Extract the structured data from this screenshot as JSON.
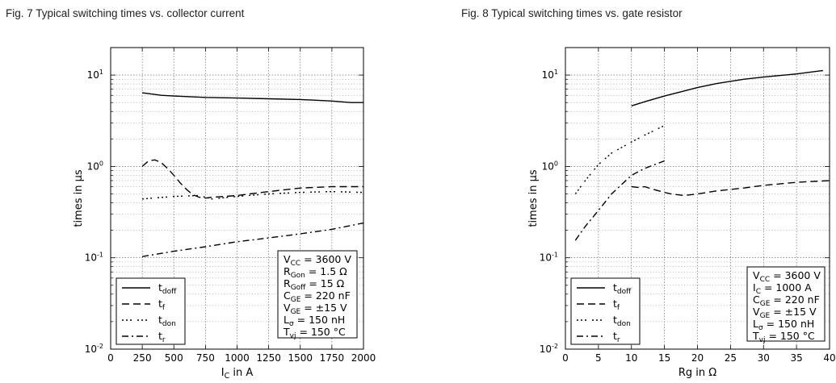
{
  "chart_data": [
    {
      "type": "line",
      "title": "Fig. 7  Typical switching times vs. collector current",
      "xlabel": "I",
      "xlabel_sub": "C",
      "xlabel_tail": " in A",
      "ylabel": "times in µs",
      "xscale": "linear",
      "yscale": "log",
      "xlim": [
        0,
        2000
      ],
      "ylim": [
        0.01,
        20
      ],
      "xticks": [
        "0",
        "250",
        "500",
        "750",
        "1000",
        "1250",
        "1500",
        "1750",
        "2000"
      ],
      "yticks": [
        {
          "exp": "-2",
          "v": 0.01
        },
        {
          "exp": "-1",
          "v": 0.1
        },
        {
          "exp": "0",
          "v": 1
        },
        {
          "exp": "1",
          "v": 10
        }
      ],
      "grid": true,
      "legend_position": "bottom-left",
      "series": [
        {
          "name": "t",
          "sub": "doff",
          "dash": "none",
          "x": [
            250,
            400,
            500,
            750,
            1000,
            1250,
            1500,
            1750,
            1900,
            2000
          ],
          "y": [
            6.4,
            6.0,
            5.9,
            5.7,
            5.6,
            5.5,
            5.4,
            5.2,
            5.0,
            5.0
          ]
        },
        {
          "name": "t",
          "sub": "f",
          "dash": "9 5",
          "x": [
            250,
            300,
            350,
            400,
            450,
            500,
            550,
            600,
            650,
            700,
            750,
            800,
            900,
            1000,
            1100,
            1250,
            1500,
            1750,
            2000
          ],
          "y": [
            1.0,
            1.15,
            1.18,
            1.1,
            0.95,
            0.8,
            0.66,
            0.56,
            0.49,
            0.46,
            0.45,
            0.46,
            0.47,
            0.48,
            0.5,
            0.53,
            0.58,
            0.6,
            0.6
          ]
        },
        {
          "name": "t",
          "sub": "don",
          "dash": "2 3 2 3 2 7",
          "x": [
            250,
            500,
            700,
            800,
            1000,
            1250,
            1500,
            1750,
            2000
          ],
          "y": [
            0.44,
            0.47,
            0.48,
            0.44,
            0.47,
            0.5,
            0.52,
            0.53,
            0.52
          ]
        },
        {
          "name": "t",
          "sub": "r",
          "dash": "8 4 2 4",
          "x": [
            250,
            500,
            750,
            1000,
            1250,
            1500,
            1750,
            2000
          ],
          "y": [
            0.103,
            0.118,
            0.132,
            0.15,
            0.165,
            0.183,
            0.205,
            0.24
          ]
        }
      ],
      "conditions": [
        {
          "main": "V",
          "sub": "CC",
          "rest": " = 3600 V"
        },
        {
          "main": "R",
          "sub": "Gon",
          "rest": " = 1.5 Ω"
        },
        {
          "main": "R",
          "sub": "Goff",
          "rest": " = 15 Ω"
        },
        {
          "main": "C",
          "sub": "GE",
          "rest": " = 220 nF"
        },
        {
          "main": "V",
          "sub": "GE",
          "rest": " = ±15 V"
        },
        {
          "main": "L",
          "sub": "σ",
          "rest": " = 150 nH"
        },
        {
          "main": "T",
          "sub": "vj",
          "rest": " = 150 °C"
        }
      ]
    },
    {
      "type": "line",
      "title": "Fig. 8  Typical switching times vs. gate resistor",
      "xlabel": "Rg in Ω",
      "xlabel_sub": "",
      "xlabel_tail": "",
      "ylabel": "times in µs",
      "xscale": "linear",
      "yscale": "log",
      "xlim": [
        0,
        40
      ],
      "ylim": [
        0.01,
        20
      ],
      "xticks": [
        "0",
        "5",
        "10",
        "15",
        "20",
        "25",
        "30",
        "35",
        "40"
      ],
      "yticks": [
        {
          "exp": "-2",
          "v": 0.01
        },
        {
          "exp": "-1",
          "v": 0.1
        },
        {
          "exp": "0",
          "v": 1
        },
        {
          "exp": "1",
          "v": 10
        }
      ],
      "grid": true,
      "legend_position": "bottom-left",
      "series": [
        {
          "name": "t",
          "sub": "doff",
          "dash": "none",
          "x": [
            10,
            12,
            15,
            18,
            20,
            23,
            27,
            30,
            35,
            39
          ],
          "y": [
            4.6,
            5.1,
            5.9,
            6.7,
            7.3,
            8.1,
            9.0,
            9.5,
            10.3,
            11.2
          ]
        },
        {
          "name": "t",
          "sub": "f",
          "dash": "9 5",
          "x": [
            10,
            11,
            12,
            13,
            15,
            16,
            18,
            20,
            23,
            27,
            30,
            35,
            40
          ],
          "y": [
            0.6,
            0.59,
            0.6,
            0.57,
            0.52,
            0.5,
            0.48,
            0.5,
            0.54,
            0.58,
            0.62,
            0.67,
            0.7
          ]
        },
        {
          "name": "t",
          "sub": "don",
          "dash": "2 3 2 3 2 7",
          "x": [
            1.5,
            3,
            5,
            7,
            10,
            12,
            15
          ],
          "y": [
            0.5,
            0.7,
            1.05,
            1.4,
            1.85,
            2.2,
            2.8
          ]
        },
        {
          "name": "t",
          "sub": "r",
          "dash": "8 4 2 4",
          "x": [
            1.5,
            3,
            5,
            7,
            10,
            12,
            15
          ],
          "y": [
            0.155,
            0.22,
            0.33,
            0.5,
            0.8,
            0.95,
            1.15
          ]
        }
      ],
      "conditions": [
        {
          "main": "V",
          "sub": "CC",
          "rest": " = 3600 V"
        },
        {
          "main": "I",
          "sub": "C",
          "rest": " = 1000 A"
        },
        {
          "main": "C",
          "sub": "GE",
          "rest": " = 220 nF"
        },
        {
          "main": "V",
          "sub": "GE",
          "rest": " = ±15 V"
        },
        {
          "main": "L",
          "sub": "σ",
          "rest": " = 150 nH"
        },
        {
          "main": "T",
          "sub": "vj",
          "rest": " = 150 °C"
        }
      ]
    }
  ]
}
